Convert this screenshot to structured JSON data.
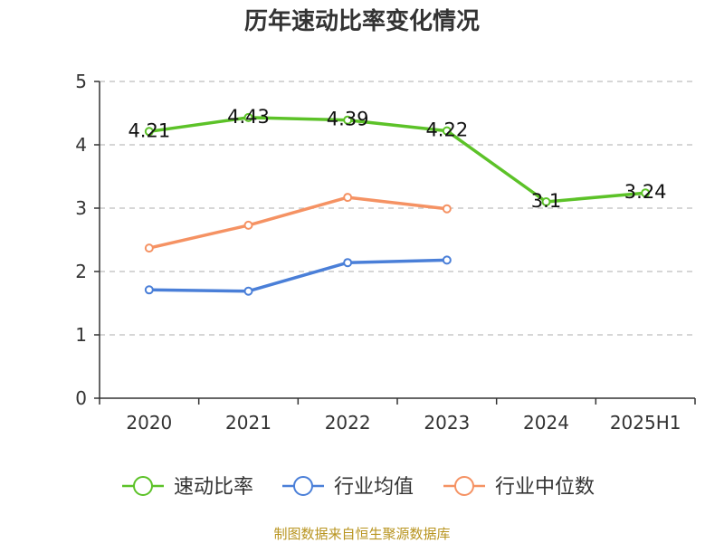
{
  "chart_data": {
    "type": "line",
    "title": "历年速动比率变化情况",
    "categories": [
      "2020",
      "2021",
      "2022",
      "2023",
      "2024",
      "2025H1"
    ],
    "ylim": [
      0,
      5
    ],
    "yticks": [
      "0",
      "1",
      "2",
      "3",
      "4",
      "5"
    ],
    "grid": "horizontal dashed",
    "legend_position": "bottom",
    "series": [
      {
        "name": "速动比率",
        "color": "#5cc228",
        "values": [
          4.21,
          4.43,
          4.39,
          4.22,
          3.1,
          3.24
        ],
        "labels": [
          "4.21",
          "4.43",
          "4.39",
          "4.22",
          "3.1",
          "3.24"
        ],
        "show_labels": true
      },
      {
        "name": "行业均值",
        "color": "#4a7fd8",
        "values": [
          1.71,
          1.69,
          2.14,
          2.18,
          null,
          null
        ],
        "show_labels": false
      },
      {
        "name": "行业中位数",
        "color": "#f59263",
        "values": [
          2.37,
          2.73,
          3.17,
          2.99,
          null,
          null
        ],
        "show_labels": false
      }
    ]
  },
  "source_note": "制图数据来自恒生聚源数据库"
}
